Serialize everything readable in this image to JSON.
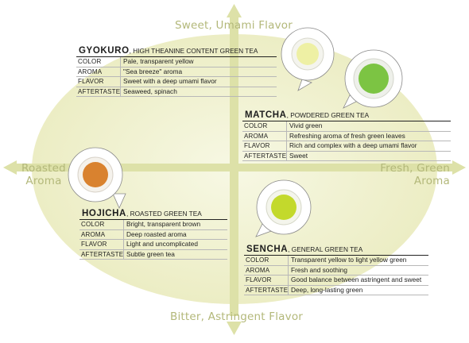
{
  "axes": {
    "top": "Sweet, Umami Flavor",
    "bottom": "Bitter, Astringent Flavor",
    "left_line1": "Roasted",
    "left_line2": "Aroma",
    "right_line1": "Fresh, Green",
    "right_line2": "Aroma"
  },
  "colors": {
    "ellipse": "#f2f3d2",
    "axis": "#dde1a8",
    "axis_text": "#b3b87a"
  },
  "teas": {
    "gyokuro": {
      "name": "GYOKURO",
      "subtitle": ", HIGH THEANINE CONTENT GREEN TEA",
      "tea_color": "#eef0a4",
      "rows": [
        {
          "label": "COLOR",
          "value": "Pale, transparent yellow"
        },
        {
          "label": "AROMA",
          "value": "\"Sea breeze\" aroma"
        },
        {
          "label": "FLAVOR",
          "value": "Sweet with a deep umami flavor"
        },
        {
          "label": "AFTERTASTE",
          "value": "Seaweed, spinach"
        }
      ]
    },
    "matcha": {
      "name": "MATCHA",
      "subtitle": ", POWDERED GREEN TEA",
      "tea_color": "#7cc443",
      "rows": [
        {
          "label": "COLOR",
          "value": "Vivid green"
        },
        {
          "label": "AROMA",
          "value": "Refreshing aroma of fresh green leaves"
        },
        {
          "label": "FLAVOR",
          "value": "Rich and complex with a deep umami flavor"
        },
        {
          "label": "AFTERTASTE",
          "value": "Sweet"
        }
      ]
    },
    "hojicha": {
      "name": "HOJICHA",
      "subtitle": ", ROASTED GREEN TEA",
      "tea_color": "#d9822f",
      "rows": [
        {
          "label": "COLOR",
          "value": "Bright, transparent brown"
        },
        {
          "label": "AROMA",
          "value": "Deep roasted aroma"
        },
        {
          "label": "FLAVOR",
          "value": "Light and uncomplicated"
        },
        {
          "label": "AFTERTASTE",
          "value": "Subtle green tea"
        }
      ]
    },
    "sencha": {
      "name": "SENCHA",
      "subtitle": ", GENERAL GREEN TEA",
      "tea_color": "#c3d92c",
      "rows": [
        {
          "label": "COLOR",
          "value": "Transparent yellow to light yellow green"
        },
        {
          "label": "AROMA",
          "value": "Fresh and soothing"
        },
        {
          "label": "FLAVOR",
          "value": "Good balance between astringent and sweet"
        },
        {
          "label": "AFTERTASTE",
          "value": "Deep, long-lasting green"
        }
      ]
    }
  }
}
